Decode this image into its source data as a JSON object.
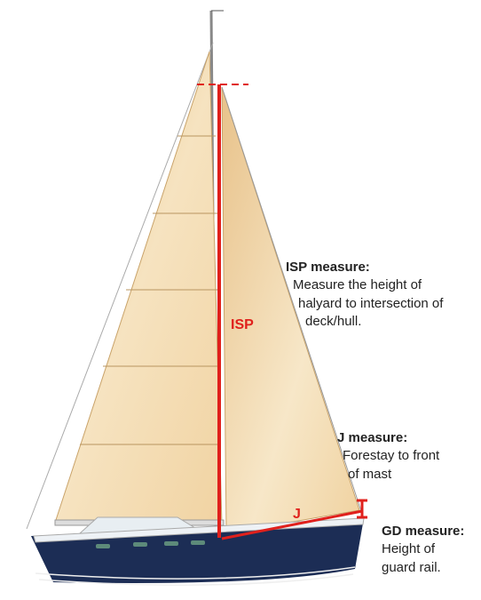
{
  "labels": {
    "isp": "ISP",
    "j": "J"
  },
  "notes": [
    {
      "title": "ISP measure:",
      "lines": [
        "Measure the height of",
        "halyard to intersection of",
        "deck/hull."
      ]
    },
    {
      "title": "J measure:",
      "lines": [
        "Forestay to front",
        "of mast"
      ]
    },
    {
      "title": "GD measure:",
      "lines": [
        "Height of",
        "guard rail."
      ]
    }
  ]
}
